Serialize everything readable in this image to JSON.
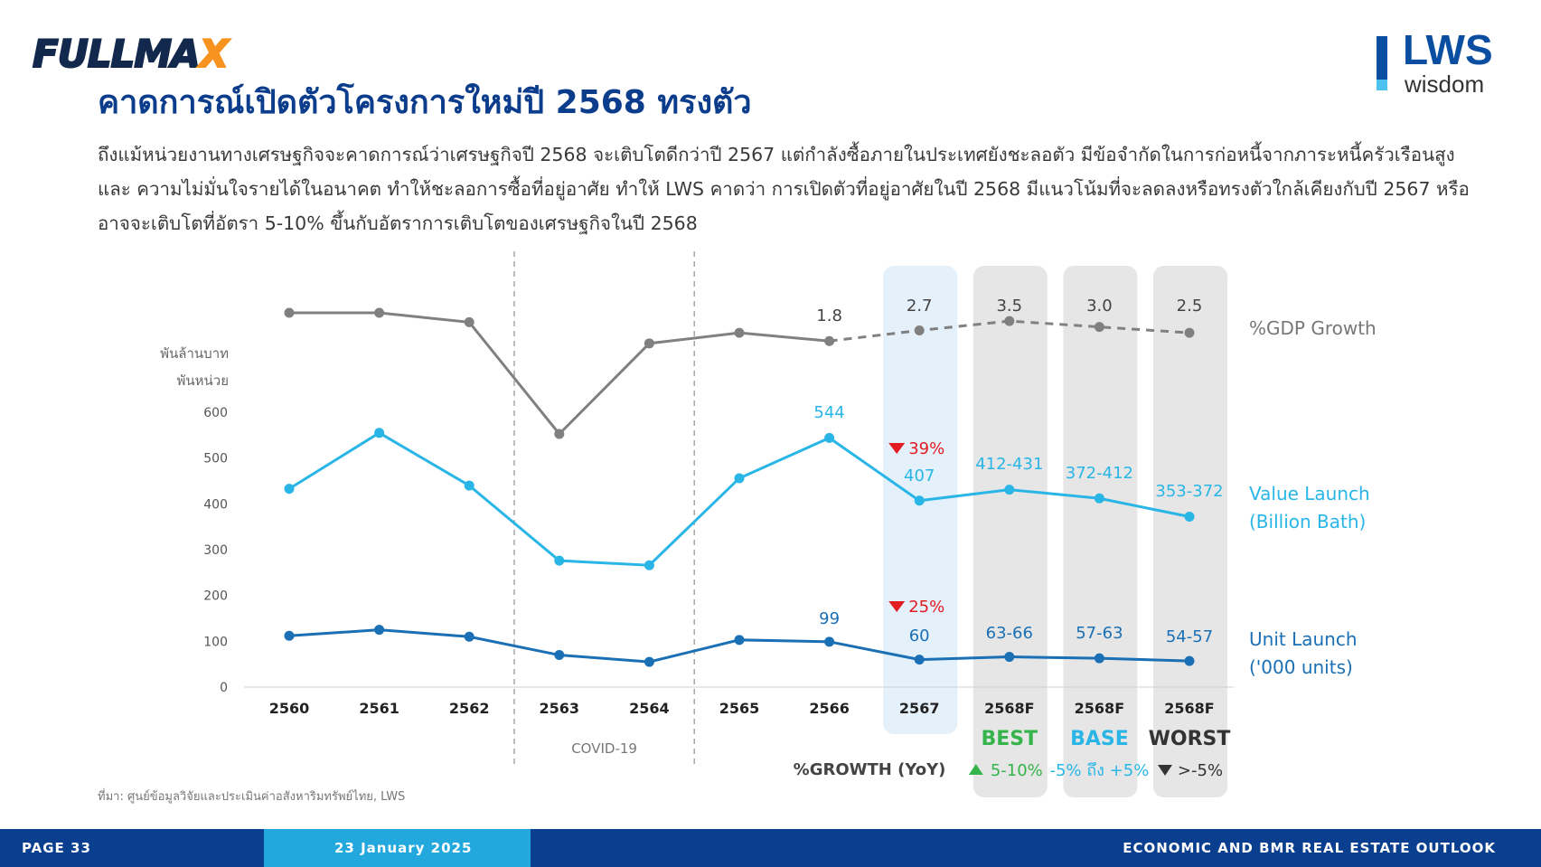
{
  "header": {
    "brand_left_main": "FULLMA",
    "brand_left_accent": "X",
    "brand_right_main": "LWS",
    "brand_right_sub": "wisdom",
    "title": "คาดการณ์เปิดตัวโครงการใหม่ปี 2568 ทรงตัว"
  },
  "paragraph": [
    "ถึงแม้หน่วยงานทางเศรษฐกิจจะคาดการณ์ว่าเศรษฐกิจปี 2568 จะเติบโตดีกว่าปี 2567 แต่กำลังซื้อภายในประเทศยังชะลอตัว มีข้อจำกัดในการก่อหนี้จากภาระหนี้ครัวเรือนสูง",
    "และ ความไม่มั่นใจรายได้ในอนาคต ทำให้ชะลอการซื้อที่อยู่อาศัย ทำให้ LWS คาดว่า การเปิดตัวที่อยู่อาศัยในปี 2568 มีแนวโน้มที่จะลดลงหรือทรงตัวใกล้เคียงกับปี 2567 หรือ",
    "อาจจะเติบโตที่อัตรา 5-10% ขึ้นกับอัตราการเติบโตของเศรษฐกิจในปี 2568"
  ],
  "chart_data": {
    "type": "line",
    "categories": [
      "2560",
      "2561",
      "2562",
      "2563",
      "2564",
      "2565",
      "2566",
      "2567",
      "2568F",
      "2568F",
      "2568F"
    ],
    "yaxis_units": [
      "พันล้านบาท",
      "พันหน่วย"
    ],
    "yticks": [
      0,
      100,
      200,
      300,
      400,
      500,
      600
    ],
    "ylim": [
      0,
      600
    ],
    "covid_label": "COVID-19",
    "scenario_labels": [
      "BEST",
      "BASE",
      "WORST"
    ],
    "growth_title": "%GROWTH (YoY)",
    "growth_values": [
      "5-10%",
      "-5% ถึง +5%",
      ">-5%"
    ],
    "series": [
      {
        "name": "%GDP Growth",
        "values": [
          4.2,
          4.2,
          3.4,
          -6.1,
          1.6,
          2.5,
          1.8,
          2.7,
          3.5,
          3.0,
          2.5
        ],
        "labels": [
          "",
          "",
          "",
          "",
          "",
          "",
          "1.8",
          "2.7",
          "3.5",
          "3.0",
          "2.5"
        ]
      },
      {
        "name_lines": [
          "Value Launch",
          "(Billion Bath)"
        ],
        "values": [
          433,
          555,
          440,
          276,
          266,
          456,
          544,
          407,
          431,
          412,
          372
        ],
        "labels": [
          "",
          "",
          "",
          "",
          "",
          "",
          "544",
          "407",
          "412-431",
          "372-412",
          "353-372"
        ],
        "change": "39%"
      },
      {
        "name_lines": [
          "Unit Launch",
          "('000 units)"
        ],
        "values": [
          112,
          125,
          110,
          70,
          55,
          103,
          99,
          60,
          66,
          63,
          57
        ],
        "labels": [
          "",
          "",
          "",
          "",
          "",
          "",
          "99",
          "60",
          "63-66",
          "57-63",
          "54-57"
        ],
        "change": "25%"
      }
    ]
  },
  "source": "ที่มา: ศูนย์ข้อมูลวิจัยและประเมินค่าอสังหาริมทรัพย์ไทย, LWS",
  "footer": {
    "page": "PAGE 33",
    "date": "23 January 2025",
    "report": "ECONOMIC AND BMR REAL ESTATE OUTLOOK"
  },
  "colors": {
    "gdp": "#808080",
    "value": "#29b6e6",
    "unit": "#1a6fb5",
    "down": "#e31b23",
    "best": "#34b44a",
    "base": "#29b6e6",
    "worst": "#333333"
  }
}
